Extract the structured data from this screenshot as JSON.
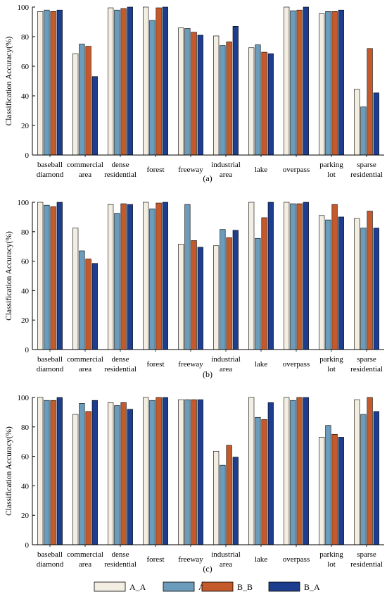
{
  "colors": {
    "A_A": "#f3eee2",
    "A_B": "#6b9cbc",
    "B_B": "#c45a2c",
    "B_A": "#1d3d8f",
    "axis": "#000000"
  },
  "legend": [
    "A_A",
    "A_B",
    "B_B",
    "B_A"
  ],
  "chart_data": [
    {
      "type": "bar",
      "panel_label": "(a)",
      "ylabel": "Classification Accuracy(%)",
      "ylim": [
        0,
        100
      ],
      "yticks": [
        0,
        20,
        40,
        60,
        80,
        100
      ],
      "categories": [
        [
          "baseball",
          "diamond"
        ],
        [
          "commercial",
          "area"
        ],
        [
          "dense",
          "residential"
        ],
        [
          "forest"
        ],
        [
          "freeway"
        ],
        [
          "industrial",
          "area"
        ],
        [
          "lake"
        ],
        [
          "overpass"
        ],
        [
          "parking",
          "lot"
        ],
        [
          "sparse",
          "residential"
        ]
      ],
      "series": [
        {
          "name": "A_A",
          "values": [
            97,
            68.5,
            99.5,
            100,
            86,
            80.5,
            72.5,
            100,
            95.5,
            44.5
          ]
        },
        {
          "name": "A_B",
          "values": [
            98,
            75,
            98,
            91,
            85.5,
            74,
            74.5,
            97.5,
            97,
            32.5
          ]
        },
        {
          "name": "B_B",
          "values": [
            97,
            73.5,
            99,
            99.5,
            83,
            76.5,
            69.5,
            98,
            97,
            72
          ]
        },
        {
          "name": "B_A",
          "values": [
            98,
            53,
            100,
            100,
            81,
            87,
            68.5,
            100,
            98,
            42
          ]
        }
      ]
    },
    {
      "type": "bar",
      "panel_label": "(b)",
      "ylabel": "Classification Accuracy(%)",
      "ylim": [
        0,
        100
      ],
      "yticks": [
        0,
        20,
        40,
        60,
        80,
        100
      ],
      "categories": [
        [
          "baseball",
          "diamond"
        ],
        [
          "commercial",
          "area"
        ],
        [
          "dense",
          "residential"
        ],
        [
          "forest"
        ],
        [
          "freeway"
        ],
        [
          "industrial",
          "area"
        ],
        [
          "lake"
        ],
        [
          "overpass"
        ],
        [
          "parking",
          "lot"
        ],
        [
          "sparse",
          "residential"
        ]
      ],
      "series": [
        {
          "name": "A_A",
          "values": [
            100,
            82.5,
            98.5,
            100,
            71.5,
            70.5,
            100,
            100,
            91,
            89
          ]
        },
        {
          "name": "A_B",
          "values": [
            98,
            67,
            92.5,
            95.5,
            98.5,
            81.5,
            75.5,
            99,
            88,
            82.5
          ]
        },
        {
          "name": "B_B",
          "values": [
            97,
            61.5,
            99,
            99.5,
            74,
            76,
            89.5,
            99,
            98.5,
            94
          ]
        },
        {
          "name": "B_A",
          "values": [
            100,
            58.5,
            98.5,
            100,
            69.5,
            81,
            100,
            100,
            90,
            82.5
          ]
        }
      ]
    },
    {
      "type": "bar",
      "panel_label": "(c)",
      "ylabel": "Classification Accuracy(%)",
      "ylim": [
        0,
        100
      ],
      "yticks": [
        0,
        20,
        40,
        60,
        80,
        100
      ],
      "categories": [
        [
          "baseball",
          "diamond"
        ],
        [
          "commercial",
          "area"
        ],
        [
          "dense",
          "residential"
        ],
        [
          "forest"
        ],
        [
          "freeway"
        ],
        [
          "industrial",
          "area"
        ],
        [
          "lake"
        ],
        [
          "overpass"
        ],
        [
          "parking",
          "lot"
        ],
        [
          "sparse",
          "residential"
        ]
      ],
      "series": [
        {
          "name": "A_A",
          "values": [
            100,
            88.5,
            96.5,
            100,
            98.5,
            63.5,
            100,
            100,
            73,
            98.5
          ]
        },
        {
          "name": "A_B",
          "values": [
            98,
            96,
            94.5,
            98,
            98.5,
            54,
            86.5,
            98,
            81,
            88.5
          ]
        },
        {
          "name": "B_B",
          "values": [
            98,
            90.5,
            96.5,
            100,
            98.5,
            67.5,
            85,
            100,
            75,
            100
          ]
        },
        {
          "name": "B_A",
          "values": [
            100,
            98,
            92,
            100,
            98.5,
            59.5,
            96.5,
            100,
            73,
            90.5
          ]
        }
      ]
    }
  ]
}
